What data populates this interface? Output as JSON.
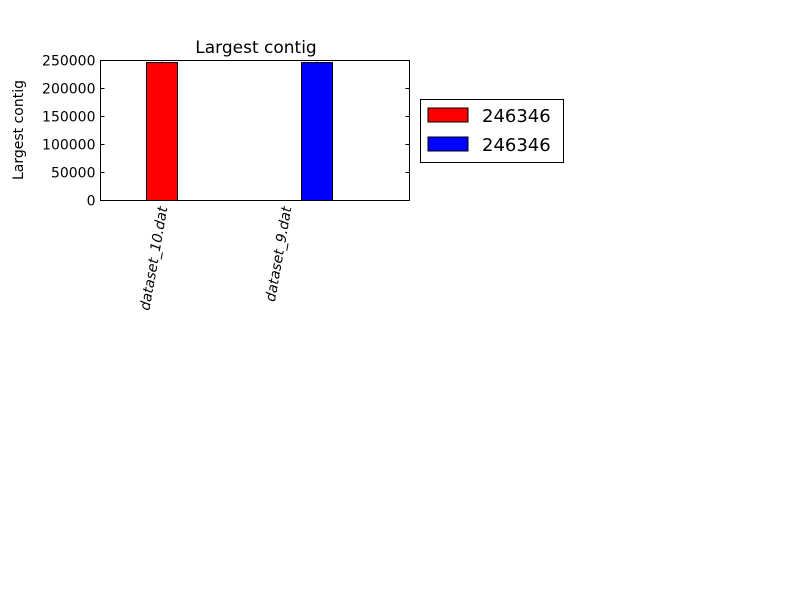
{
  "chart_data": {
    "type": "bar",
    "title": "Largest contig",
    "xlabel": "",
    "ylabel": "Largest contig",
    "ylim": [
      0,
      250000
    ],
    "yticks": [
      0,
      50000,
      100000,
      150000,
      200000,
      250000
    ],
    "categories": [
      "dataset_10.dat",
      "dataset_9.dat"
    ],
    "series": [
      {
        "name": "246346",
        "color": "#ff0000",
        "values": [
          246346,
          0
        ]
      },
      {
        "name": "246346",
        "color": "#0000ff",
        "values": [
          0,
          246346
        ]
      }
    ],
    "grid": false,
    "legend_position": "outside-right"
  }
}
